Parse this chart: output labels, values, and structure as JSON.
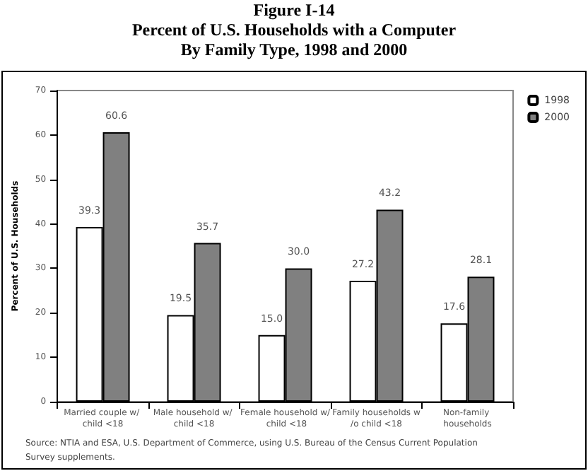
{
  "chart_data": {
    "type": "bar",
    "title": "Figure I-14\nPercent of U.S. Households with a Computer\nBy Family Type, 1998 and 2000",
    "ylabel": "Percent of U.S. Households",
    "categories": [
      "Married couple w/ child <18",
      "Male household w/ child <18",
      "Female household w/ child <18",
      "Family households w/o child <18",
      "Non-family households"
    ],
    "series": [
      {
        "name": "1998",
        "color": "#ffffff",
        "values": [
          39.3,
          19.5,
          15.0,
          27.2,
          17.6
        ],
        "value_labels": [
          "39.3",
          "19.5",
          "15.0",
          "27.2",
          "17.6"
        ]
      },
      {
        "name": "2000",
        "color": "#808080",
        "values": [
          60.6,
          35.7,
          30.0,
          43.2,
          28.1
        ],
        "value_labels": [
          "60.6",
          "35.7",
          "30.0",
          "43.2",
          "28.1"
        ]
      }
    ],
    "ylim": [
      0,
      70
    ],
    "yticks": [
      0,
      10,
      20,
      30,
      40,
      50,
      60,
      70
    ],
    "grid": false,
    "legend": "top right",
    "annotations": [
      "Source:  NTIA and ESA, U.S. Department of Commerce, using U.S. Bureau of the Census Current Population Survey supplements."
    ]
  }
}
